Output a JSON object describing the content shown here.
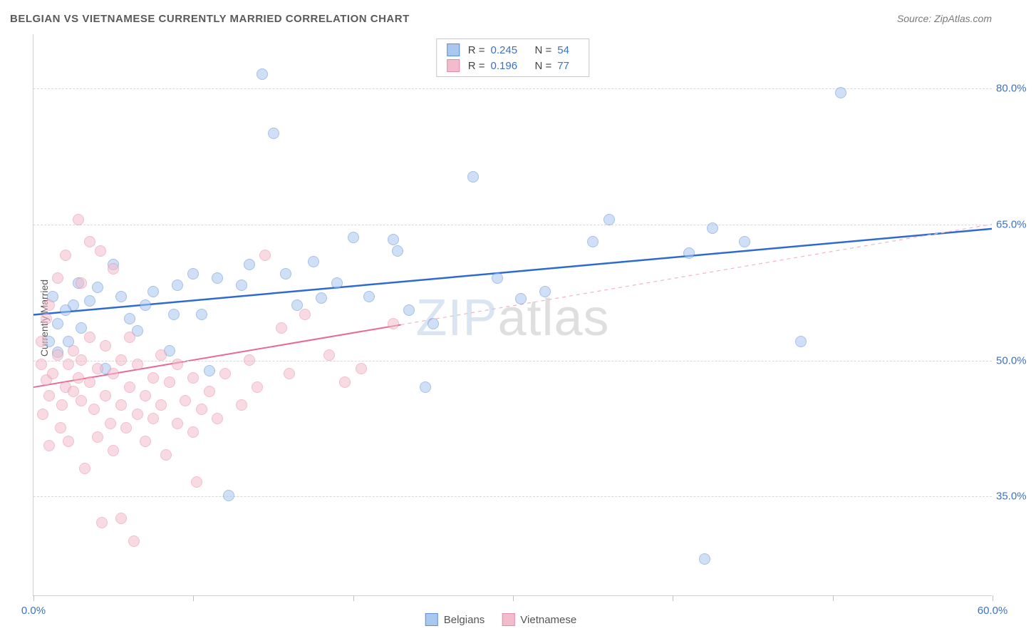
{
  "header": {
    "title": "BELGIAN VS VIETNAMESE CURRENTLY MARRIED CORRELATION CHART",
    "source": "Source: ZipAtlas.com"
  },
  "watermark": {
    "part1": "ZIP",
    "part2": "atlas"
  },
  "chart": {
    "type": "scatter",
    "background_color": "#ffffff",
    "grid_color": "#d8d8d8",
    "border_color": "#d0d0d0",
    "ylabel": "Currently Married",
    "label_fontsize": 14,
    "label_color": "#5a5a5a",
    "tick_label_color": "#3a72c9",
    "tick_fontsize": 15,
    "xlim": [
      0,
      60
    ],
    "ylim": [
      24,
      86
    ],
    "x_ticks": [
      0,
      10,
      20,
      30,
      40,
      50,
      60
    ],
    "x_tick_labels": {
      "0": "0.0%",
      "60": "60.0%"
    },
    "y_ticks": [
      35,
      50,
      65,
      80
    ],
    "y_tick_labels": {
      "35": "35.0%",
      "50": "50.0%",
      "65": "65.0%",
      "80": "80.0%"
    },
    "marker_radius": 8,
    "marker_opacity": 0.55,
    "marker_stroke_width": 1.2,
    "series": [
      {
        "name": "Belgians",
        "color_fill": "#a9c7ef",
        "color_stroke": "#5f8fd6",
        "R": "0.245",
        "N": "54",
        "trend": {
          "color": "#2e6bd0",
          "width": 2.5,
          "solid_from_x": 0,
          "solid_to_x": 60,
          "y_at_x0": 55.0,
          "y_at_x60": 64.5,
          "dashed": false
        },
        "points": [
          [
            14.3,
            81.5
          ],
          [
            15.0,
            75.0
          ],
          [
            27.5,
            70.2
          ],
          [
            50.5,
            79.5
          ],
          [
            42.5,
            64.5
          ],
          [
            36.0,
            65.5
          ],
          [
            22.5,
            63.3
          ],
          [
            22.8,
            62.0
          ],
          [
            20.0,
            63.5
          ],
          [
            17.5,
            60.8
          ],
          [
            15.8,
            59.5
          ],
          [
            13.5,
            60.5
          ],
          [
            13.0,
            58.2
          ],
          [
            11.5,
            59.0
          ],
          [
            10.0,
            59.5
          ],
          [
            9.0,
            58.2
          ],
          [
            8.8,
            55.0
          ],
          [
            7.5,
            57.5
          ],
          [
            7.0,
            56.0
          ],
          [
            6.5,
            53.2
          ],
          [
            5.0,
            60.5
          ],
          [
            5.5,
            57.0
          ],
          [
            4.0,
            58.0
          ],
          [
            3.5,
            56.5
          ],
          [
            3.0,
            53.5
          ],
          [
            2.5,
            56.0
          ],
          [
            2.2,
            52.0
          ],
          [
            2.0,
            55.5
          ],
          [
            1.5,
            54.0
          ],
          [
            1.5,
            50.8
          ],
          [
            1.0,
            52.0
          ],
          [
            4.5,
            49.0
          ],
          [
            8.5,
            51.0
          ],
          [
            11.0,
            48.8
          ],
          [
            18.0,
            56.8
          ],
          [
            19.0,
            58.5
          ],
          [
            16.5,
            56.0
          ],
          [
            21.0,
            57.0
          ],
          [
            23.5,
            55.5
          ],
          [
            24.5,
            47.0
          ],
          [
            30.5,
            56.7
          ],
          [
            32.0,
            57.5
          ],
          [
            25.0,
            54.0
          ],
          [
            12.2,
            35.0
          ],
          [
            42.0,
            28.0
          ],
          [
            48.0,
            52.0
          ],
          [
            44.5,
            63.0
          ],
          [
            41.0,
            61.8
          ],
          [
            35.0,
            63.0
          ],
          [
            29.0,
            59.0
          ],
          [
            10.5,
            55.0
          ],
          [
            6.0,
            54.5
          ],
          [
            2.8,
            58.5
          ],
          [
            1.2,
            57.0
          ]
        ]
      },
      {
        "name": "Vietnamese",
        "color_fill": "#f3bccc",
        "color_stroke": "#e98aa8",
        "R": "0.196",
        "N": "77",
        "trend": {
          "color": "#e86a92",
          "width": 2,
          "solid_from_x": 0,
          "solid_to_x": 23,
          "y_at_x0": 47.0,
          "y_at_x60": 65.0,
          "dashed_color": "#f3b3c6",
          "dashed": true
        },
        "points": [
          [
            2.8,
            65.5
          ],
          [
            3.5,
            63.0
          ],
          [
            2.0,
            61.5
          ],
          [
            4.2,
            62.0
          ],
          [
            5.0,
            60.0
          ],
          [
            3.0,
            58.5
          ],
          [
            1.5,
            59.0
          ],
          [
            1.0,
            56.0
          ],
          [
            0.8,
            54.5
          ],
          [
            0.5,
            52.0
          ],
          [
            0.5,
            49.5
          ],
          [
            0.8,
            47.8
          ],
          [
            1.0,
            46.0
          ],
          [
            1.2,
            48.5
          ],
          [
            1.5,
            50.5
          ],
          [
            1.8,
            45.0
          ],
          [
            2.0,
            47.0
          ],
          [
            2.2,
            49.5
          ],
          [
            2.5,
            51.0
          ],
          [
            2.5,
            46.5
          ],
          [
            2.8,
            48.0
          ],
          [
            3.0,
            45.5
          ],
          [
            3.0,
            50.0
          ],
          [
            3.5,
            47.5
          ],
          [
            3.5,
            52.5
          ],
          [
            3.8,
            44.5
          ],
          [
            4.0,
            49.0
          ],
          [
            4.0,
            41.5
          ],
          [
            4.5,
            46.0
          ],
          [
            4.5,
            51.5
          ],
          [
            4.8,
            43.0
          ],
          [
            5.0,
            48.5
          ],
          [
            5.0,
            40.0
          ],
          [
            5.5,
            45.0
          ],
          [
            5.5,
            50.0
          ],
          [
            5.8,
            42.5
          ],
          [
            6.0,
            47.0
          ],
          [
            6.0,
            52.5
          ],
          [
            6.5,
            44.0
          ],
          [
            6.5,
            49.5
          ],
          [
            7.0,
            46.0
          ],
          [
            7.0,
            41.0
          ],
          [
            7.5,
            48.0
          ],
          [
            7.5,
            43.5
          ],
          [
            8.0,
            50.5
          ],
          [
            8.0,
            45.0
          ],
          [
            8.5,
            47.5
          ],
          [
            9.0,
            43.0
          ],
          [
            9.0,
            49.5
          ],
          [
            9.5,
            45.5
          ],
          [
            10.0,
            48.0
          ],
          [
            10.0,
            42.0
          ],
          [
            10.5,
            44.5
          ],
          [
            11.0,
            46.5
          ],
          [
            11.5,
            43.5
          ],
          [
            12.0,
            48.5
          ],
          [
            13.0,
            45.0
          ],
          [
            13.5,
            50.0
          ],
          [
            14.0,
            47.0
          ],
          [
            14.5,
            61.5
          ],
          [
            15.5,
            53.5
          ],
          [
            16.0,
            48.5
          ],
          [
            17.0,
            55.0
          ],
          [
            18.5,
            50.5
          ],
          [
            19.5,
            47.5
          ],
          [
            5.5,
            32.5
          ],
          [
            4.3,
            32.0
          ],
          [
            6.3,
            30.0
          ],
          [
            10.2,
            36.5
          ],
          [
            3.2,
            38.0
          ],
          [
            2.2,
            41.0
          ],
          [
            8.3,
            39.5
          ],
          [
            1.0,
            40.5
          ],
          [
            0.6,
            44.0
          ],
          [
            1.7,
            42.5
          ],
          [
            20.5,
            49.0
          ],
          [
            22.5,
            54.0
          ]
        ]
      }
    ]
  },
  "stats_legend": {
    "r_label": "R =",
    "n_label": "N ="
  },
  "bottom_legend": {
    "items": [
      "Belgians",
      "Vietnamese"
    ]
  }
}
